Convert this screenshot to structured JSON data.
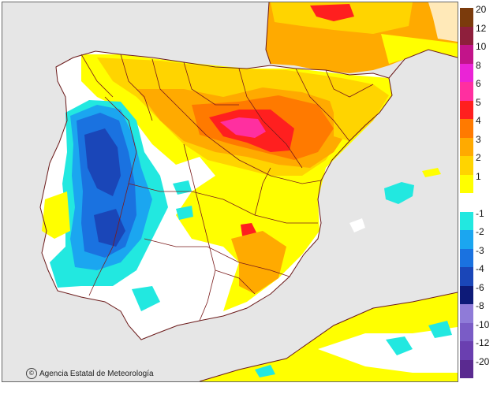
{
  "map": {
    "credit": "Agencia Estatal de Meteorología",
    "colors": {
      "sea": "#e6e6e6",
      "land": "#ffffff",
      "border": "#7a1b1b",
      "coast": "#6b1a1a"
    }
  },
  "legend": {
    "classes": [
      {
        "label": "20",
        "color": "#7b3b0c"
      },
      {
        "label": "12",
        "color": "#8e1f3c"
      },
      {
        "label": "10",
        "color": "#c2148a"
      },
      {
        "label": "8",
        "color": "#ea24d6"
      },
      {
        "label": "6",
        "color": "#ff2fa0"
      },
      {
        "label": "5",
        "color": "#ff1f1f"
      },
      {
        "label": "4",
        "color": "#ff7a00"
      },
      {
        "label": "3",
        "color": "#ffaa00"
      },
      {
        "label": "2",
        "color": "#ffd400"
      },
      {
        "label": "1",
        "color": "#ffff00"
      },
      {
        "label": "",
        "color": "#ffffff"
      },
      {
        "label": "-1",
        "color": "#22e8e0"
      },
      {
        "label": "-2",
        "color": "#1ba6f0"
      },
      {
        "label": "-3",
        "color": "#1a72e0"
      },
      {
        "label": "-4",
        "color": "#1a46b8"
      },
      {
        "label": "-6",
        "color": "#0d1a78"
      },
      {
        "label": "-8",
        "color": "#8f7bd8"
      },
      {
        "label": "-10",
        "color": "#7a5cc6"
      },
      {
        "label": "-12",
        "color": "#6a3fb0"
      },
      {
        "label": "-20",
        "color": "#5a2a90"
      }
    ]
  }
}
